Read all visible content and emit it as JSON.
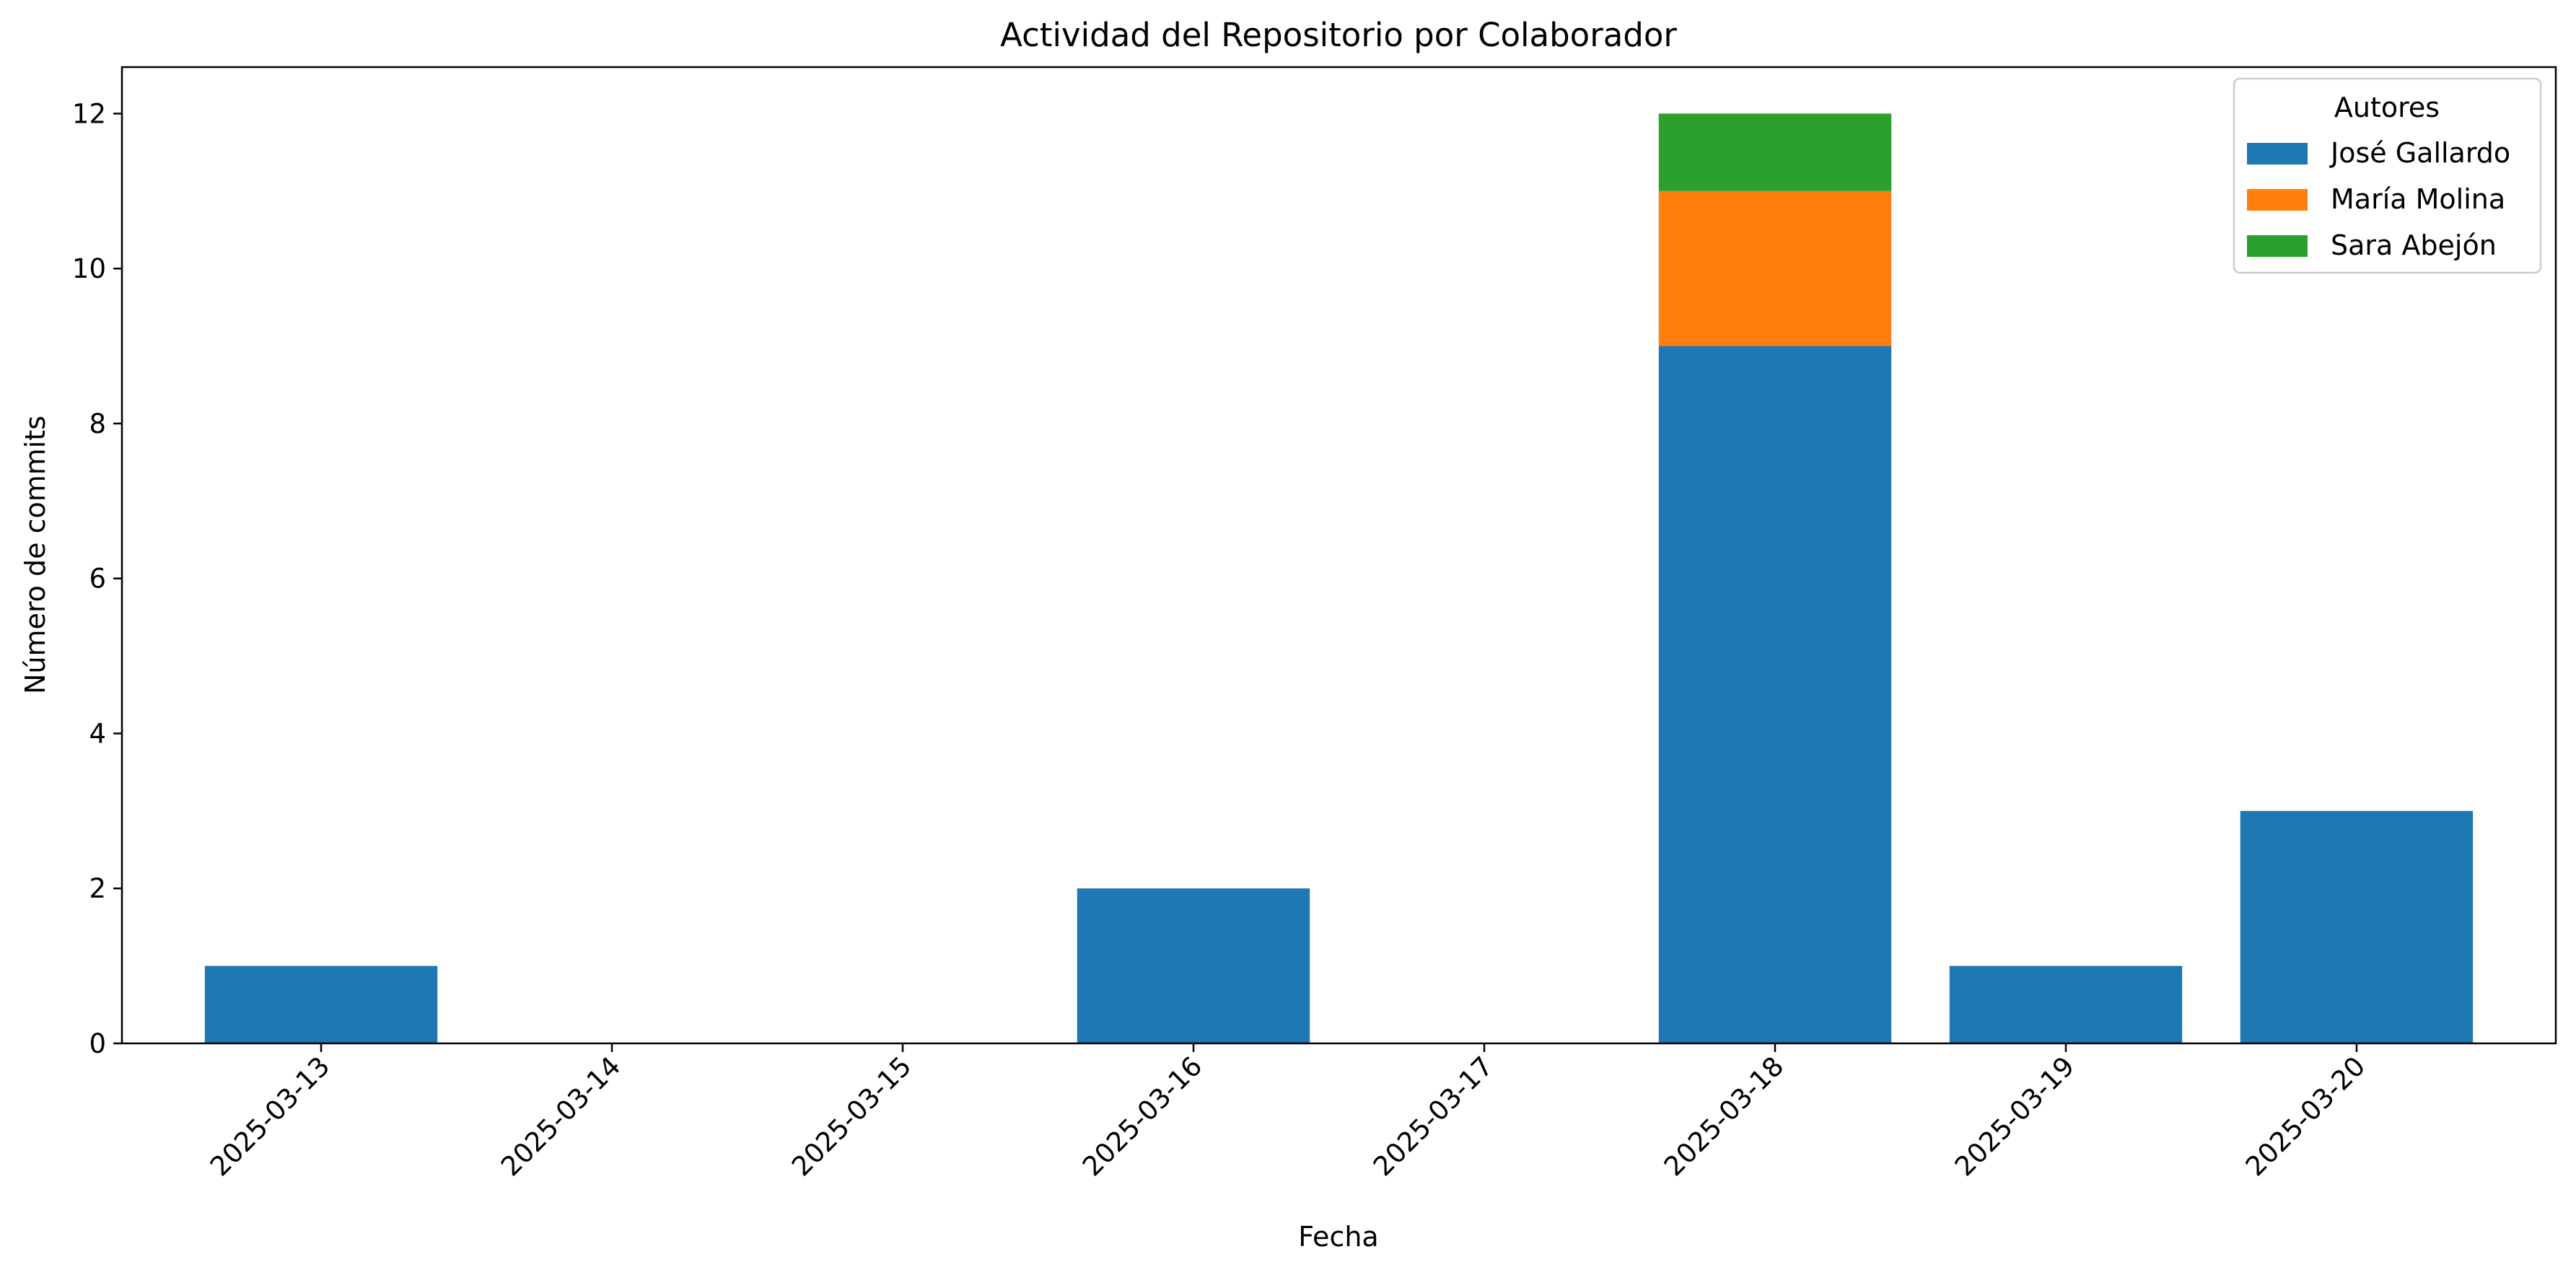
{
  "chart_data": {
    "type": "bar",
    "stacked": true,
    "title": "Actividad del Repositorio por Colaborador",
    "xlabel": "Fecha",
    "ylabel": "Número de commits",
    "categories": [
      "2025-03-13",
      "2025-03-14",
      "2025-03-15",
      "2025-03-16",
      "2025-03-17",
      "2025-03-18",
      "2025-03-19",
      "2025-03-20"
    ],
    "series": [
      {
        "name": "José Gallardo",
        "color": "#1f77b4",
        "values": [
          1,
          0,
          0,
          2,
          0,
          9,
          1,
          3
        ]
      },
      {
        "name": "María Molina",
        "color": "#ff7f0e",
        "values": [
          0,
          0,
          0,
          0,
          0,
          2,
          0,
          0
        ]
      },
      {
        "name": "Sara Abejón",
        "color": "#2ca02c",
        "values": [
          0,
          0,
          0,
          0,
          0,
          1,
          0,
          0
        ]
      }
    ],
    "ylim": [
      0,
      12.6
    ],
    "yticks": [
      0,
      2,
      4,
      6,
      8,
      10,
      12
    ],
    "xtick_rotation": 45,
    "grid": false,
    "legend": {
      "title": "Autores",
      "placement": "top-right"
    }
  }
}
